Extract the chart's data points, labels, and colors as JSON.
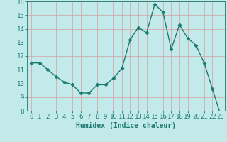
{
  "x": [
    0,
    1,
    2,
    3,
    4,
    5,
    6,
    7,
    8,
    9,
    10,
    11,
    12,
    13,
    14,
    15,
    16,
    17,
    18,
    19,
    20,
    21,
    22,
    23
  ],
  "y": [
    11.5,
    11.5,
    11.0,
    10.5,
    10.1,
    9.9,
    9.3,
    9.3,
    9.9,
    9.9,
    10.4,
    11.1,
    13.2,
    14.1,
    13.7,
    15.8,
    15.2,
    12.5,
    14.3,
    13.3,
    12.8,
    11.5,
    9.6,
    7.7
  ],
  "line_color": "#1a7a6e",
  "marker": "D",
  "markersize": 2.5,
  "linewidth": 1.0,
  "bg_color": "#c2eaea",
  "grid_color": "#d4aaaa",
  "xlabel": "Humidex (Indice chaleur)",
  "xlabel_fontsize": 7,
  "tick_fontsize": 6.5,
  "ylim": [
    8,
    16
  ],
  "xlim": [
    -0.5,
    23.5
  ],
  "yticks": [
    8,
    9,
    10,
    11,
    12,
    13,
    14,
    15,
    16
  ],
  "xticks": [
    0,
    1,
    2,
    3,
    4,
    5,
    6,
    7,
    8,
    9,
    10,
    11,
    12,
    13,
    14,
    15,
    16,
    17,
    18,
    19,
    20,
    21,
    22,
    23
  ]
}
